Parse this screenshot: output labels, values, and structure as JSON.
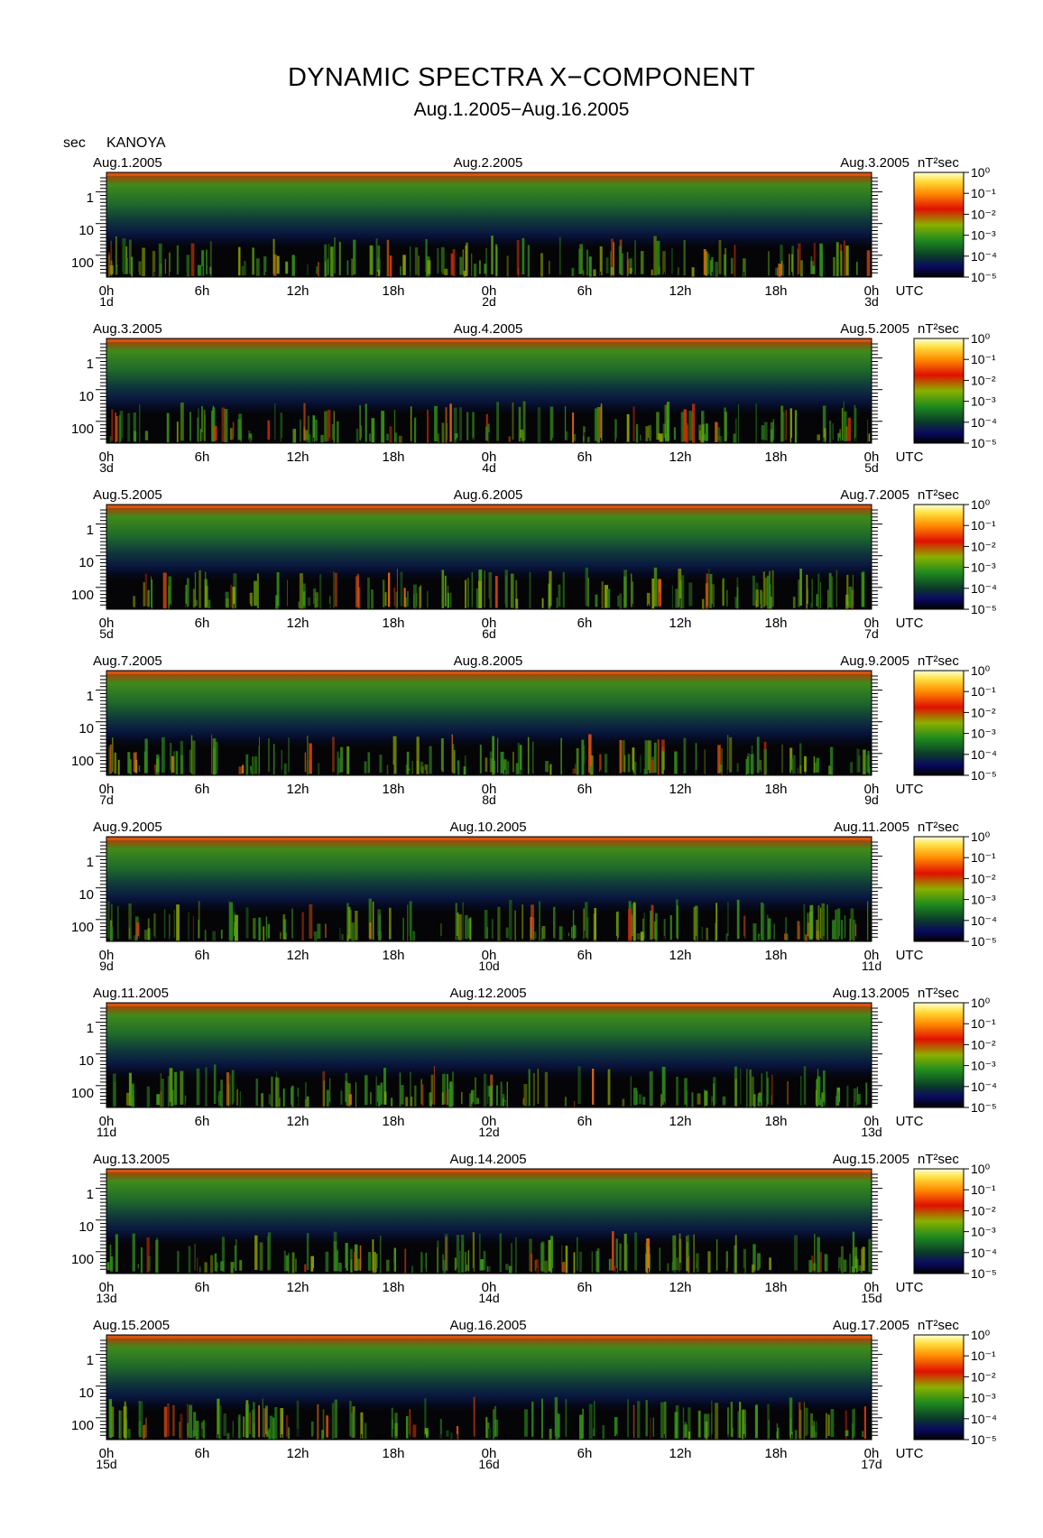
{
  "header": {
    "title": "DYNAMIC SPECTRA X−COMPONENT",
    "subtitle": "Aug.1.2005−Aug.16.2005",
    "y_unit": "sec",
    "station": "KANOYA"
  },
  "chart_data": {
    "type": "heatmap",
    "title": "DYNAMIC SPECTRA X−COMPONENT",
    "subtitle": "Aug.1.2005−Aug.16.2005",
    "ylabel": "sec",
    "y_scale": "log",
    "y_ticks": [
      "1",
      "10",
      "100"
    ],
    "x_ticks": [
      "0h",
      "6h",
      "12h",
      "18h",
      "0h",
      "6h",
      "12h",
      "18h",
      "0h"
    ],
    "x_unit": "UTC",
    "colorbar": {
      "unit": "nT²sec",
      "labels": [
        "10⁰",
        "10⁻¹",
        "10⁻²",
        "10⁻³",
        "10⁻⁴",
        "10⁻⁵"
      ],
      "colors": [
        "#ffffe0",
        "#ffd400",
        "#ff6a00",
        "#e00000",
        "#7fb000",
        "#1f8a1f",
        "#0f4a20",
        "#0a1a30",
        "#0a0a60",
        "#000000"
      ]
    },
    "panels": [
      {
        "left_date": "Aug.1.2005",
        "mid_date": "Aug.2.2005",
        "right_date": "Aug.3.2005",
        "day_labels": [
          "1d",
          "2d",
          "3d"
        ]
      },
      {
        "left_date": "Aug.3.2005",
        "mid_date": "Aug.4.2005",
        "right_date": "Aug.5.2005",
        "day_labels": [
          "3d",
          "4d",
          "5d"
        ]
      },
      {
        "left_date": "Aug.5.2005",
        "mid_date": "Aug.6.2005",
        "right_date": "Aug.7.2005",
        "day_labels": [
          "5d",
          "6d",
          "7d"
        ]
      },
      {
        "left_date": "Aug.7.2005",
        "mid_date": "Aug.8.2005",
        "right_date": "Aug.9.2005",
        "day_labels": [
          "7d",
          "8d",
          "9d"
        ]
      },
      {
        "left_date": "Aug.9.2005",
        "mid_date": "Aug.10.2005",
        "right_date": "Aug.11.2005",
        "day_labels": [
          "9d",
          "10d",
          "11d"
        ]
      },
      {
        "left_date": "Aug.11.2005",
        "mid_date": "Aug.12.2005",
        "right_date": "Aug.13.2005",
        "day_labels": [
          "11d",
          "12d",
          "13d"
        ]
      },
      {
        "left_date": "Aug.13.2005",
        "mid_date": "Aug.14.2005",
        "right_date": "Aug.15.2005",
        "day_labels": [
          "13d",
          "14d",
          "15d"
        ]
      },
      {
        "left_date": "Aug.15.2005",
        "mid_date": "Aug.16.2005",
        "right_date": "Aug.17.2005",
        "day_labels": [
          "15d",
          "16d",
          "17d"
        ]
      }
    ]
  }
}
